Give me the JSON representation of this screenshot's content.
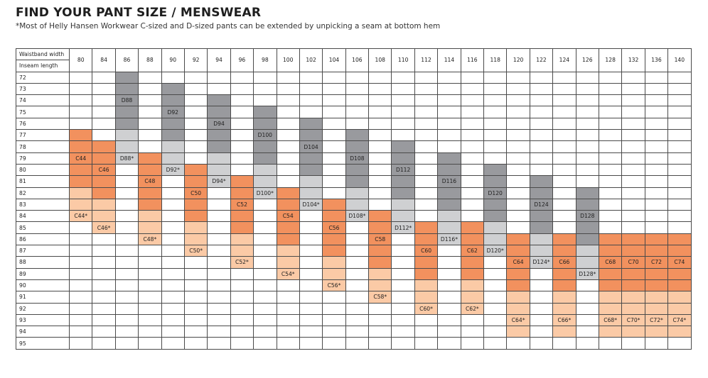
{
  "title": "FIND YOUR PANT SIZE / MENSWEAR",
  "subtitle": "*Most of Helly Hansen Workwear C-sized and D-sized pants can be extended by unpicking a seam at bottom hem",
  "colors": {
    "orange": "#f2915e",
    "light_orange": "#fbcaa6",
    "dark_grey": "#999a9e",
    "light_grey": "#cfd0d2"
  },
  "table": {
    "waist_label": "Waistband width",
    "inseam_label": "Inseam length",
    "waists": [
      "80",
      "84",
      "86",
      "88",
      "90",
      "92",
      "94",
      "96",
      "98",
      "100",
      "102",
      "104",
      "106",
      "108",
      "110",
      "112",
      "114",
      "116",
      "118",
      "120",
      "122",
      "124",
      "126",
      "128",
      "132",
      "136",
      "140"
    ],
    "inseams": [
      "72",
      "73",
      "74",
      "75",
      "76",
      "77",
      "78",
      "79",
      "80",
      "81",
      "82",
      "83",
      "84",
      "85",
      "86",
      "87",
      "88",
      "89",
      "90",
      "91",
      "92",
      "93",
      "94",
      "95"
    ],
    "bands": [
      {
        "col": 2,
        "start": 0,
        "dark": 5,
        "light": 3,
        "label": "D88",
        "label_row": 2,
        "ext_label": "D88*",
        "ext_row": 7
      },
      {
        "col": 4,
        "start": 1,
        "dark": 5,
        "light": 3,
        "label": "D92",
        "label_row": 3,
        "ext_label": "D92*",
        "ext_row": 8
      },
      {
        "col": 6,
        "start": 2,
        "dark": 5,
        "light": 3,
        "label": "D94",
        "label_row": 4,
        "ext_label": "D94*",
        "ext_row": 9
      },
      {
        "col": 8,
        "start": 3,
        "dark": 5,
        "light": 3,
        "label": "D100",
        "label_row": 5,
        "ext_label": "D100*",
        "ext_row": 10
      },
      {
        "col": 10,
        "start": 4,
        "dark": 5,
        "light": 3,
        "label": "D104",
        "label_row": 6,
        "ext_label": "D104*",
        "ext_row": 11
      },
      {
        "col": 12,
        "start": 5,
        "dark": 5,
        "light": 3,
        "label": "D108",
        "label_row": 7,
        "ext_label": "D108*",
        "ext_row": 12
      },
      {
        "col": 14,
        "start": 6,
        "dark": 5,
        "light": 3,
        "label": "D112",
        "label_row": 8,
        "ext_label": "D112*",
        "ext_row": 13
      },
      {
        "col": 16,
        "start": 7,
        "dark": 5,
        "light": 3,
        "label": "D116",
        "label_row": 9,
        "ext_label": "D116*",
        "ext_row": 14
      },
      {
        "col": 18,
        "start": 8,
        "dark": 5,
        "light": 3,
        "label": "D120",
        "label_row": 10,
        "ext_label": "D120*",
        "ext_row": 15
      },
      {
        "col": 20,
        "start": 9,
        "dark": 5,
        "light": 3,
        "label": "D124",
        "label_row": 11,
        "ext_label": "D124*",
        "ext_row": 16
      },
      {
        "col": 22,
        "start": 10,
        "dark": 5,
        "light": 3,
        "label": "D128",
        "label_row": 12,
        "ext_label": "D128*",
        "ext_row": 17
      },
      {
        "col": 0,
        "start": 5,
        "orange": 5,
        "light": 3,
        "label": "C44",
        "label_row": 7,
        "ext_label": "C44*",
        "ext_row": 12
      },
      {
        "col": 1,
        "start": 6,
        "orange": 5,
        "light": 3,
        "label": "C46",
        "label_row": 8,
        "ext_label": "C46*",
        "ext_row": 13
      },
      {
        "col": 3,
        "start": 7,
        "orange": 5,
        "light": 3,
        "label": "C48",
        "label_row": 9,
        "ext_label": "C48*",
        "ext_row": 14
      },
      {
        "col": 5,
        "start": 8,
        "orange": 5,
        "light": 3,
        "label": "C50",
        "label_row": 10,
        "ext_label": "C50*",
        "ext_row": 15
      },
      {
        "col": 7,
        "start": 9,
        "orange": 5,
        "light": 3,
        "label": "C52",
        "label_row": 11,
        "ext_label": "C52*",
        "ext_row": 16
      },
      {
        "col": 9,
        "start": 10,
        "orange": 5,
        "light": 3,
        "label": "C54",
        "label_row": 12,
        "ext_label": "C54*",
        "ext_row": 17
      },
      {
        "col": 11,
        "start": 11,
        "orange": 5,
        "light": 3,
        "label": "C56",
        "label_row": 13,
        "ext_label": "C56*",
        "ext_row": 18
      },
      {
        "col": 13,
        "start": 12,
        "orange": 5,
        "light": 3,
        "label": "C58",
        "label_row": 14,
        "ext_label": "C58*",
        "ext_row": 19
      },
      {
        "col": 15,
        "start": 13,
        "orange": 5,
        "light": 3,
        "label": "C60",
        "label_row": 15,
        "ext_label": "C60*",
        "ext_row": 20
      },
      {
        "col": 17,
        "start": 13,
        "orange": 5,
        "light": 3,
        "label": "C62",
        "label_row": 15,
        "ext_label": "C62*",
        "ext_row": 20
      },
      {
        "col": 19,
        "start": 14,
        "orange": 5,
        "light": 4,
        "label": "C64",
        "label_row": 16,
        "ext_label": "C64*",
        "ext_row": 21
      },
      {
        "col": 21,
        "start": 14,
        "orange": 5,
        "light": 4,
        "label": "C66",
        "label_row": 16,
        "ext_label": "C66*",
        "ext_row": 21
      },
      {
        "col": 23,
        "start": 14,
        "orange": 5,
        "light": 4,
        "label": "C68",
        "label_row": 16,
        "ext_label": "C68*",
        "ext_row": 21
      },
      {
        "col": 24,
        "start": 14,
        "orange": 5,
        "light": 4,
        "label": "C70",
        "label_row": 16,
        "ext_label": "C70*",
        "ext_row": 21
      },
      {
        "col": 25,
        "start": 14,
        "orange": 5,
        "light": 4,
        "label": "C72",
        "label_row": 16,
        "ext_label": "C72*",
        "ext_row": 21
      },
      {
        "col": 26,
        "start": 14,
        "orange": 5,
        "light": 4,
        "label": "C74",
        "label_row": 16,
        "ext_label": "C74*",
        "ext_row": 21
      }
    ]
  }
}
